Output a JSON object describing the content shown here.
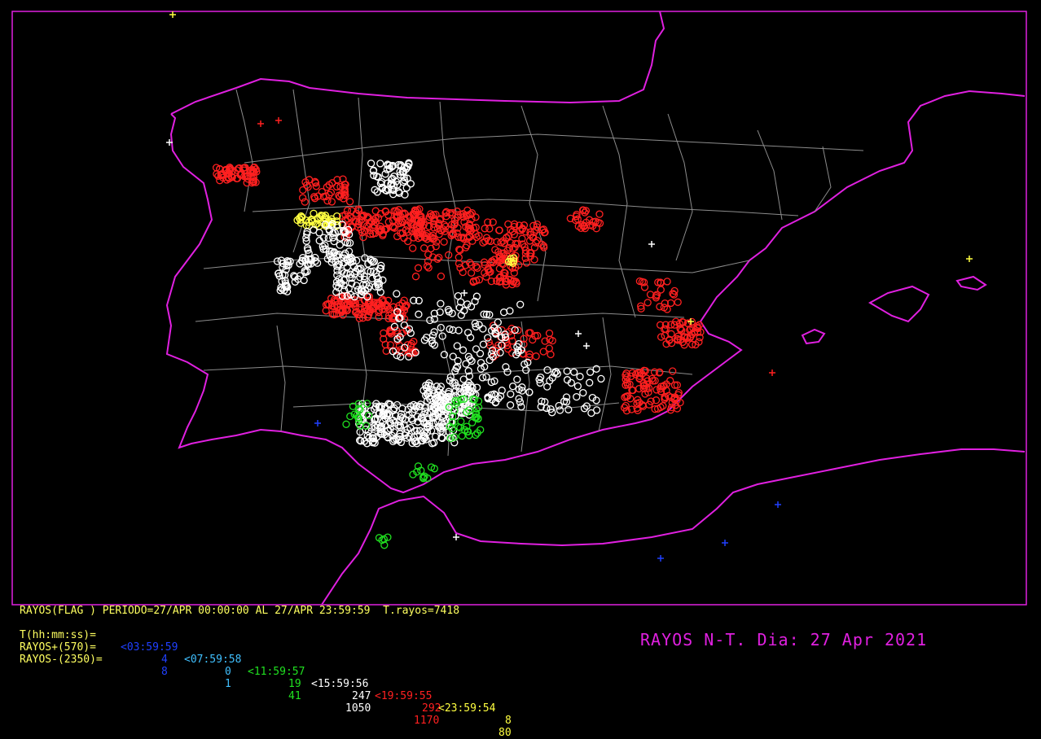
{
  "colors": {
    "coast": "#e020e0",
    "provinces": "#8c8c8c",
    "frame": "#e020e0",
    "legend_text": "#ffff60",
    "band_03": "#2040ff",
    "band_07": "#40c0ff",
    "band_11": "#20e020",
    "band_15": "#ffffff",
    "band_19": "#ff2020",
    "band_23": "#ffff40"
  },
  "legend": {
    "line1": "RAYOS(FLAG ) PERIODO=27/APR 00:00:00 AL 27/APR 23:59:59  T.rayos=7418",
    "line2_label": "T(hh:mm:ss)=",
    "bands": [
      "<03:59:59",
      "<07:59:58",
      "<11:59:57",
      "<15:59:56",
      "<19:59:55",
      "<23:59:54"
    ],
    "pos_label": "RAYOS+(570)=",
    "pos_counts": [
      "4",
      "0",
      "19",
      "247",
      "292",
      "8"
    ],
    "neg_label": "RAYOS-(2350)=",
    "neg_counts": [
      "8",
      "1",
      "41",
      "1050",
      "1170",
      "80"
    ]
  },
  "title": "RAYOS N-T. Dia: 27 Apr 2021",
  "markers": {
    "positive_symbol": "plus",
    "negative_symbol": "circle"
  }
}
